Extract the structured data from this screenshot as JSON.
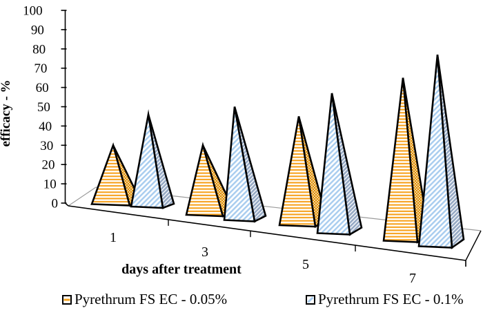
{
  "chart_data": {
    "type": "pyramid-bar-3d",
    "title": "",
    "xlabel": "days after treatment",
    "ylabel": "efficacy - %",
    "ylim": [
      0,
      100
    ],
    "ytick_step": 10,
    "grid": false,
    "legend_position": "bottom",
    "background": "#FFFFFF",
    "axis_color": "#000000",
    "floor_gray": "#9A9A9A",
    "categories": [
      "1",
      "3",
      "5",
      "7"
    ],
    "series": [
      {
        "name": "Pyrethrum FS EC - 0.05%",
        "values": [
          30,
          30,
          45,
          65
        ],
        "stripe_style": "horizontal",
        "stripe_color": "#F7A11C",
        "side_color": "#E08E00"
      },
      {
        "name": "Pyrethrum FS EC - 0.1%",
        "values": [
          46,
          50,
          57,
          77
        ],
        "stripe_style": "diagonal",
        "stripe_color": "#A9CDEF",
        "side_color": "#96A9C4"
      }
    ]
  }
}
